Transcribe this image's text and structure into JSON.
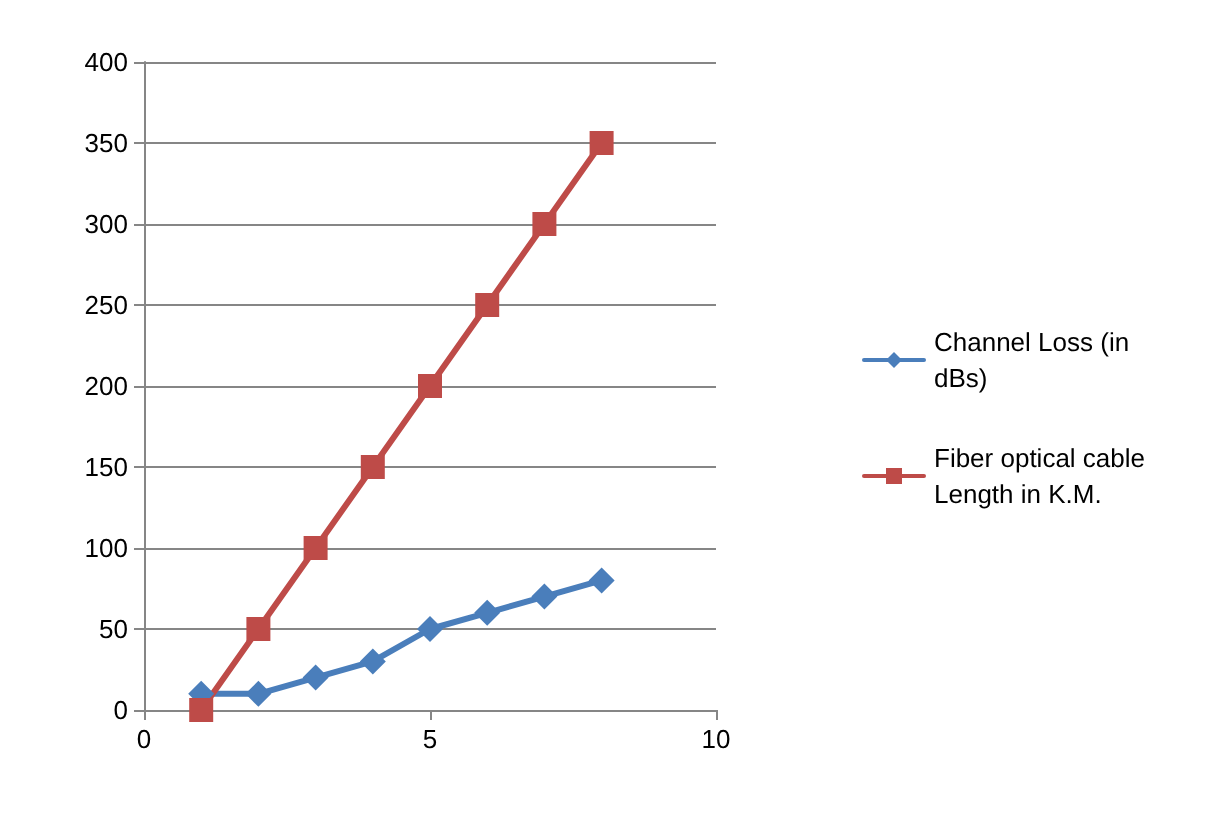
{
  "chart_data": {
    "type": "line",
    "x": [
      1,
      2,
      3,
      4,
      5,
      6,
      7,
      8
    ],
    "series": [
      {
        "name": "Channel Loss (in dBs)",
        "color": "#4a7ebb",
        "marker": "diamond",
        "values": [
          10,
          10,
          20,
          30,
          50,
          60,
          70,
          80
        ]
      },
      {
        "name": "Fiber optical cable Length in K.M.",
        "color": "#be4b48",
        "marker": "square",
        "values": [
          0,
          50,
          100,
          150,
          200,
          250,
          300,
          350
        ]
      }
    ],
    "xlim": [
      0,
      10
    ],
    "xticks": [
      0,
      5,
      10
    ],
    "ylim": [
      0,
      400
    ],
    "yticks": [
      0,
      50,
      100,
      150,
      200,
      250,
      300,
      350,
      400
    ],
    "grid": "y",
    "legend": "right",
    "line_style": "solid"
  }
}
